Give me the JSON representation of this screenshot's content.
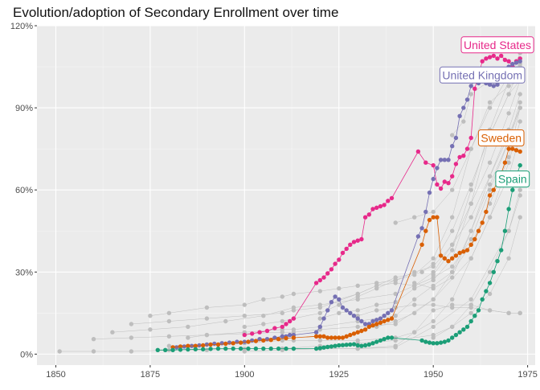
{
  "chart_data": {
    "type": "line",
    "title": "Evolution/adoption of Secondary Enrollment over time",
    "xlabel": "",
    "ylabel": "",
    "xlim": [
      1845,
      1977
    ],
    "ylim": [
      -4,
      120
    ],
    "x_ticks": [
      1850,
      1875,
      1900,
      1925,
      1950,
      1975
    ],
    "x_tick_labels": [
      "1850",
      "1875",
      "1900",
      "1925",
      "1950",
      "1975"
    ],
    "y_ticks": [
      0,
      30,
      60,
      90,
      120
    ],
    "y_tick_labels": [
      "0%",
      "30%",
      "60%",
      "90%",
      "120%"
    ],
    "grid": true,
    "legend": "none (direct labels)",
    "background_series_color": "#BEBEBE",
    "background_series": [
      {
        "x": [
          1851,
          1860,
          1870,
          1880,
          1890,
          1900,
          1910,
          1920,
          1930,
          1940,
          1950,
          1960,
          1970,
          1973
        ],
        "y": [
          1,
          1,
          1,
          1.5,
          1.5,
          2,
          2,
          2,
          2,
          2.5,
          10,
          20,
          45,
          60
        ]
      },
      {
        "x": [
          1860,
          1870,
          1880,
          1890,
          1900,
          1910,
          1913,
          1920,
          1930,
          1940,
          1950,
          1960,
          1965,
          1970,
          1973
        ],
        "y": [
          5.5,
          6,
          6.5,
          7,
          7.5,
          8,
          8,
          9,
          10,
          11,
          20,
          35,
          50,
          70,
          85
        ]
      },
      {
        "x": [
          1865,
          1875,
          1885,
          1895,
          1905,
          1913,
          1920,
          1930,
          1940,
          1945,
          1950,
          1955,
          1960,
          1965,
          1970,
          1973
        ],
        "y": [
          8,
          9,
          10,
          12,
          14,
          17,
          18,
          20,
          22,
          25,
          30,
          40,
          55,
          70,
          88,
          100
        ]
      },
      {
        "x": [
          1870,
          1880,
          1890,
          1900,
          1910,
          1913,
          1920,
          1930,
          1940,
          1947,
          1950,
          1955,
          1960,
          1965,
          1970,
          1973
        ],
        "y": [
          11,
          12,
          13,
          14,
          15,
          16,
          17,
          22,
          28,
          30,
          33,
          45,
          62,
          80,
          95,
          105
        ]
      },
      {
        "x": [
          1875,
          1880,
          1890,
          1900,
          1905,
          1910,
          1913,
          1920,
          1925,
          1930,
          1935,
          1940,
          1945,
          1950,
          1955,
          1960,
          1965,
          1970,
          1973
        ],
        "y": [
          14,
          15,
          17,
          18,
          20,
          21,
          22,
          23,
          24,
          25,
          26,
          27,
          29,
          35,
          50,
          75,
          92,
          98,
          100
        ]
      },
      {
        "x": [
          1880,
          1890,
          1900,
          1910,
          1913,
          1920,
          1930,
          1940,
          1945,
          1950,
          1955,
          1960,
          1965,
          1970,
          1973
        ],
        "y": [
          3,
          3.5,
          4,
          5,
          5,
          5,
          5,
          6,
          8,
          12,
          20,
          35,
          50,
          65,
          80
        ]
      },
      {
        "x": [
          1885,
          1890,
          1900,
          1910,
          1913,
          1920,
          1930,
          1940,
          1945,
          1950,
          1955,
          1960,
          1965,
          1970,
          1973
        ],
        "y": [
          6,
          7,
          8,
          9,
          9,
          10,
          12,
          14,
          20,
          25,
          30,
          40,
          55,
          72,
          90
        ]
      },
      {
        "x": [
          1900,
          1905,
          1910,
          1913,
          1920,
          1925,
          1930,
          1935,
          1940,
          1945,
          1950,
          1955,
          1960,
          1965,
          1970,
          1973
        ],
        "y": [
          10,
          11,
          12,
          13,
          15,
          18,
          21,
          24,
          27,
          30,
          32,
          40,
          50,
          65,
          80,
          90
        ]
      },
      {
        "x": [
          1920,
          1925,
          1930,
          1935,
          1940,
          1945,
          1950,
          1955,
          1960,
          1965,
          1970,
          1973
        ],
        "y": [
          13,
          15,
          16,
          18,
          19,
          24,
          27,
          35,
          55,
          80,
          95,
          100
        ]
      },
      {
        "x": [
          1925,
          1930,
          1935,
          1940,
          1945,
          1950,
          1955,
          1960,
          1965,
          1970,
          1973
        ],
        "y": [
          20,
          22,
          25,
          26,
          25,
          28,
          32,
          42,
          60,
          78,
          90
        ]
      },
      {
        "x": [
          1930,
          1935,
          1940,
          1945,
          1950,
          1955,
          1960,
          1965,
          1970,
          1973
        ],
        "y": [
          14,
          16,
          17,
          18,
          18,
          17,
          17,
          16,
          15,
          15
        ]
      },
      {
        "x": [
          1900,
          1910,
          1920,
          1930,
          1940,
          1945,
          1950,
          1955,
          1960,
          1965,
          1970,
          1973
        ],
        "y": [
          1,
          1.5,
          2,
          2,
          3,
          8,
          16,
          18,
          18,
          16,
          15,
          15
        ]
      },
      {
        "x": [
          1945,
          1950,
          1955,
          1960,
          1965,
          1970,
          1973
        ],
        "y": [
          26,
          24,
          28,
          45,
          65,
          82,
          95
        ]
      },
      {
        "x": [
          1950,
          1955,
          1960,
          1965,
          1970,
          1973
        ],
        "y": [
          29,
          38,
          60,
          82,
          100,
          110
        ]
      },
      {
        "x": [
          1950,
          1955,
          1960,
          1965,
          1970,
          1973
        ],
        "y": [
          6,
          10,
          18,
          30,
          45,
          58
        ]
      },
      {
        "x": [
          1935,
          1940,
          1945,
          1950,
          1955,
          1960,
          1965,
          1970,
          1973
        ],
        "y": [
          10,
          12,
          15,
          20,
          30,
          45,
          62,
          78,
          92
        ]
      },
      {
        "x": [
          1940,
          1945,
          1950,
          1955,
          1960,
          1965,
          1970,
          1973
        ],
        "y": [
          48,
          50,
          52,
          60,
          75,
          90,
          102,
          108
        ]
      },
      {
        "x": [
          1955,
          1958,
          1960,
          1965,
          1970,
          1973
        ],
        "y": [
          80,
          85,
          95,
          100,
          103,
          106
        ]
      },
      {
        "x": [
          1910,
          1920,
          1930,
          1940,
          1950,
          1955,
          1960,
          1965,
          1970,
          1973
        ],
        "y": [
          2,
          3,
          4,
          5,
          7,
          10,
          15,
          22,
          35,
          50
        ]
      }
    ],
    "series": [
      {
        "name": "United States",
        "color": "#E7298A",
        "x": [
          1900,
          1902,
          1904,
          1906,
          1908,
          1910,
          1911,
          1912,
          1913,
          1919,
          1920,
          1921,
          1922,
          1923,
          1924,
          1925,
          1926,
          1927,
          1928,
          1929,
          1930,
          1931,
          1932,
          1933,
          1934,
          1935,
          1936,
          1937,
          1938,
          1939,
          1946,
          1948,
          1950,
          1951,
          1952,
          1953,
          1954,
          1955,
          1956,
          1957,
          1958,
          1959,
          1960,
          1961,
          1962,
          1963,
          1964,
          1965,
          1966,
          1967,
          1968,
          1969,
          1970,
          1971,
          1972,
          1973
        ],
        "y": [
          7,
          7.5,
          8,
          8.5,
          9.5,
          10,
          11,
          12,
          13,
          26,
          27,
          28,
          29.5,
          31,
          33,
          34.5,
          37,
          38.5,
          40,
          41,
          41.5,
          42,
          50,
          51,
          53,
          53.5,
          54,
          54.5,
          56,
          57,
          74,
          70,
          69,
          62,
          60.5,
          63,
          62.5,
          65,
          69.5,
          72,
          72.5,
          75,
          79,
          97,
          102,
          107,
          108,
          108.5,
          109,
          108,
          109,
          107.5,
          107,
          105,
          107,
          108
        ]
      },
      {
        "name": "United Kingdom",
        "color": "#7570B3",
        "x": [
          1882,
          1884,
          1886,
          1888,
          1890,
          1892,
          1894,
          1896,
          1898,
          1900,
          1902,
          1904,
          1906,
          1908,
          1910,
          1911,
          1912,
          1913,
          1919,
          1920,
          1921,
          1922,
          1923,
          1924,
          1925,
          1926,
          1927,
          1928,
          1929,
          1930,
          1931,
          1932,
          1933,
          1934,
          1935,
          1936,
          1937,
          1938,
          1939,
          1946,
          1947,
          1948,
          1949,
          1950,
          1951,
          1952,
          1953,
          1954,
          1955,
          1956,
          1957,
          1958,
          1959,
          1960,
          1961,
          1962,
          1963,
          1964,
          1965,
          1966,
          1967,
          1968,
          1969,
          1970,
          1971,
          1972,
          1973
        ],
        "y": [
          2.5,
          2.8,
          3,
          3.2,
          3.5,
          3.8,
          4,
          4.2,
          4.5,
          4.5,
          5,
          5.5,
          5.5,
          6,
          6.5,
          6.5,
          7,
          7,
          8,
          10,
          13,
          16,
          19,
          21,
          20,
          17,
          16,
          15,
          14,
          13,
          12,
          11,
          11,
          12,
          12.5,
          13,
          14,
          15,
          16,
          43,
          46,
          52,
          59,
          64,
          68,
          71,
          71,
          71,
          76,
          79,
          87,
          90,
          93,
          98,
          100,
          99,
          100,
          99,
          98.5,
          98,
          98.5,
          100,
          104,
          105,
          106,
          106.5,
          107
        ]
      },
      {
        "name": "Sweden",
        "color": "#D95F02",
        "x": [
          1881,
          1883,
          1885,
          1887,
          1889,
          1891,
          1893,
          1895,
          1897,
          1899,
          1901,
          1903,
          1905,
          1907,
          1909,
          1911,
          1913,
          1919,
          1920,
          1921,
          1922,
          1923,
          1924,
          1925,
          1926,
          1927,
          1928,
          1929,
          1930,
          1931,
          1932,
          1933,
          1934,
          1935,
          1936,
          1937,
          1938,
          1939,
          1947,
          1948,
          1949,
          1950,
          1951,
          1952,
          1953,
          1954,
          1955,
          1956,
          1957,
          1958,
          1959,
          1960,
          1961,
          1962,
          1963,
          1964,
          1965,
          1966,
          1967,
          1968,
          1969,
          1970,
          1971,
          1972,
          1973
        ],
        "y": [
          2.5,
          2.8,
          3,
          3,
          3.2,
          3.5,
          3.5,
          3.8,
          4,
          4.2,
          4.5,
          4.8,
          5,
          5.2,
          5.5,
          5.8,
          6,
          6.5,
          6.5,
          6.5,
          6,
          6,
          6,
          6,
          6,
          6.5,
          7,
          7.5,
          8,
          8.5,
          9,
          10,
          10.5,
          11,
          11.5,
          12,
          12.5,
          13,
          40,
          45,
          49,
          50,
          50,
          36,
          35,
          34,
          35,
          36,
          37,
          37.5,
          38,
          40,
          42,
          45,
          48,
          52,
          58,
          60,
          63,
          66,
          70,
          75,
          75,
          74.5,
          74
        ]
      },
      {
        "name": "Spain",
        "color": "#1B9E77",
        "x": [
          1877,
          1879,
          1881,
          1883,
          1885,
          1887,
          1889,
          1891,
          1893,
          1895,
          1897,
          1899,
          1901,
          1903,
          1905,
          1907,
          1909,
          1911,
          1913,
          1919,
          1920,
          1921,
          1922,
          1923,
          1924,
          1925,
          1926,
          1927,
          1928,
          1929,
          1930,
          1931,
          1932,
          1933,
          1934,
          1935,
          1936,
          1937,
          1938,
          1939,
          1947,
          1948,
          1949,
          1950,
          1951,
          1952,
          1953,
          1954,
          1955,
          1956,
          1957,
          1958,
          1959,
          1960,
          1961,
          1962,
          1963,
          1964,
          1965,
          1966,
          1967,
          1968,
          1969,
          1970,
          1971,
          1972,
          1973
        ],
        "y": [
          1.5,
          1.5,
          1.5,
          1.6,
          1.7,
          1.8,
          1.8,
          1.9,
          2,
          2,
          2,
          2,
          2,
          2,
          2,
          2,
          2,
          2,
          2,
          2,
          2.2,
          2.4,
          2.6,
          2.8,
          3,
          3.2,
          3.3,
          3.4,
          3.5,
          3.6,
          3.2,
          3,
          3.2,
          3.5,
          4,
          4.5,
          5,
          5.5,
          6,
          6,
          5,
          4.5,
          4.2,
          4,
          4,
          4.2,
          4.5,
          5,
          6,
          7,
          8,
          9,
          10,
          12,
          14,
          16,
          20,
          23,
          26,
          30,
          34,
          38,
          45,
          53,
          60,
          65,
          69
        ]
      }
    ],
    "labels": [
      {
        "text": "United States",
        "series": "United States",
        "x": 1967,
        "y": 113
      },
      {
        "text": "United Kingdom",
        "series": "United Kingdom",
        "x": 1963,
        "y": 102
      },
      {
        "text": "Sweden",
        "series": "Sweden",
        "x": 1968,
        "y": 79
      },
      {
        "text": "Spain",
        "series": "Spain",
        "x": 1971,
        "y": 64
      }
    ]
  }
}
